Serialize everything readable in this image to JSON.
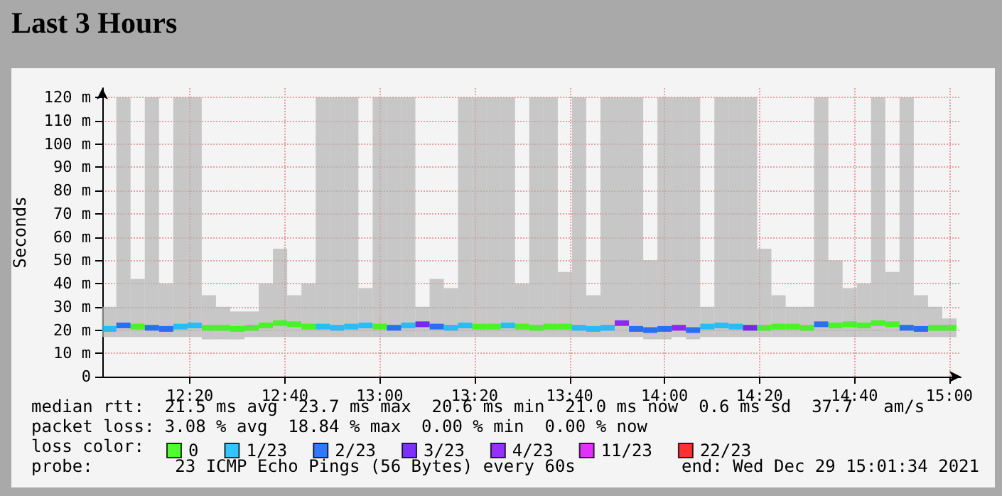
{
  "chart_data": {
    "type": "scatter",
    "title": "Last 3 Hours",
    "ylabel": "Seconds",
    "legend_title": "loss color:",
    "annotations": [
      "median rtt:  21.5 ms avg  23.7 ms max  20.6 ms min  21.0 ms now  0.6 ms sd  37.7   am/s",
      "packet loss: 3.08 % avg  18.84 % max  0.00 % min  0.00 % now",
      "probe:        23 ICMP Echo Pings (56 Bytes) every 60s",
      "end: Wed Dec 29 15:01:34 2021"
    ],
    "x": [
      12.05,
      12.1,
      12.15,
      12.2,
      12.25,
      12.3,
      12.35,
      12.4,
      12.45,
      12.5,
      12.55,
      12.6,
      12.65,
      12.7,
      12.75,
      12.8,
      12.85,
      12.9,
      12.95,
      13.0,
      13.05,
      13.1,
      13.15,
      13.2,
      13.25,
      13.3,
      13.35,
      13.4,
      13.45,
      13.5,
      13.55,
      13.6,
      13.65,
      13.7,
      13.75,
      13.8,
      13.85,
      13.9,
      13.95,
      14.0,
      14.05,
      14.1,
      14.15,
      14.2,
      14.25,
      14.3,
      14.35,
      14.4,
      14.45,
      14.5,
      14.55,
      14.6,
      14.65,
      14.7,
      14.75,
      14.8,
      14.85,
      14.9,
      14.95,
      15.0
    ],
    "series": [
      {
        "type": "bar",
        "color": "#b4b4b4",
        "values": [
          13,
          103,
          25,
          103,
          23,
          103,
          103,
          19,
          14,
          12,
          11,
          23,
          38,
          18,
          23,
          103,
          103,
          103,
          21,
          103,
          103,
          103,
          13,
          25,
          21,
          103,
          103,
          103,
          103,
          23,
          103,
          103,
          28,
          103,
          18,
          103,
          103,
          103,
          34,
          104,
          103,
          104,
          13,
          103,
          103,
          103,
          38,
          18,
          13,
          13,
          103,
          33,
          21,
          23,
          103,
          28,
          103,
          18,
          13,
          8
        ],
        "base": [
          17,
          17,
          17,
          17,
          17,
          17,
          17,
          16,
          16,
          16,
          17,
          17,
          17,
          17,
          17,
          17,
          17,
          17,
          17,
          17,
          17,
          17,
          17,
          17,
          17,
          17,
          17,
          17,
          17,
          17,
          17,
          17,
          17,
          17,
          17,
          17,
          17,
          17,
          16,
          16,
          17,
          16,
          17,
          17,
          17,
          17,
          17,
          17,
          17,
          17,
          17,
          17,
          17,
          17,
          17,
          17,
          17,
          17,
          17,
          17
        ]
      },
      {
        "name": "0",
        "color": "#26ff00",
        "marker": "square",
        "values": [
          null,
          null,
          21.5,
          null,
          null,
          null,
          null,
          21,
          21,
          20.5,
          21,
          22,
          23,
          22.5,
          21.5,
          null,
          null,
          null,
          null,
          21.5,
          null,
          null,
          null,
          null,
          null,
          null,
          21.5,
          21.5,
          null,
          21.5,
          21,
          21.5,
          21.5,
          null,
          null,
          null,
          null,
          null,
          null,
          null,
          null,
          null,
          null,
          null,
          null,
          null,
          21,
          21.5,
          21.5,
          21,
          null,
          22,
          22.5,
          22,
          23,
          22.5,
          null,
          null,
          21,
          21
        ]
      },
      {
        "name": "1/23",
        "color": "#00b8ff",
        "marker": "square",
        "values": [
          20.5,
          null,
          null,
          null,
          null,
          21.5,
          22,
          null,
          null,
          null,
          null,
          null,
          null,
          null,
          null,
          21.5,
          21,
          21.5,
          22,
          null,
          null,
          22,
          null,
          null,
          21,
          22,
          null,
          null,
          22,
          null,
          null,
          null,
          null,
          21,
          20.5,
          21,
          null,
          null,
          null,
          null,
          null,
          null,
          21.5,
          22,
          21.5,
          null,
          null,
          null,
          null,
          null,
          null,
          null,
          null,
          null,
          null,
          null,
          null,
          null,
          null,
          null
        ]
      },
      {
        "name": "2/23",
        "color": "#0059ff",
        "marker": "square",
        "values": [
          null,
          22,
          null,
          21,
          20.5,
          null,
          null,
          null,
          null,
          null,
          null,
          null,
          null,
          null,
          null,
          null,
          null,
          null,
          null,
          null,
          21,
          null,
          null,
          21.5,
          null,
          null,
          null,
          null,
          null,
          null,
          null,
          null,
          null,
          null,
          null,
          null,
          null,
          20.5,
          20,
          20.5,
          null,
          20,
          null,
          null,
          null,
          null,
          null,
          null,
          null,
          null,
          22.5,
          null,
          null,
          null,
          null,
          null,
          21,
          20.5,
          null,
          null
        ]
      },
      {
        "name": "3/23",
        "color": "#5e00ff",
        "marker": "square",
        "values": [
          null,
          null,
          null,
          null,
          null,
          null,
          null,
          null,
          null,
          null,
          null,
          null,
          null,
          null,
          null,
          null,
          null,
          null,
          null,
          null,
          null,
          null,
          22.5,
          null,
          null,
          null,
          null,
          null,
          null,
          null,
          null,
          null,
          null,
          null,
          null,
          null,
          null,
          null,
          null,
          null,
          null,
          null,
          null,
          null,
          null,
          21,
          null,
          null,
          null,
          null,
          null,
          null,
          null,
          null,
          null,
          null,
          null,
          null,
          null,
          null
        ]
      },
      {
        "name": "4/23",
        "color": "#7e00ff",
        "marker": "square",
        "values": [
          null,
          null,
          null,
          null,
          null,
          null,
          null,
          null,
          null,
          null,
          null,
          null,
          null,
          null,
          null,
          null,
          null,
          null,
          null,
          null,
          null,
          null,
          null,
          null,
          null,
          null,
          null,
          null,
          null,
          null,
          null,
          null,
          null,
          null,
          null,
          null,
          23,
          null,
          null,
          null,
          21,
          null,
          null,
          null,
          null,
          null,
          null,
          null,
          null,
          null,
          null,
          null,
          null,
          null,
          null,
          null,
          null,
          null,
          null,
          null
        ]
      },
      {
        "name": "11/23",
        "color": "#dd00ff",
        "marker": "square",
        "values": [
          null,
          null,
          null,
          null,
          null,
          null,
          null,
          null,
          null,
          null,
          null,
          null,
          null,
          null,
          null,
          null,
          null,
          null,
          null,
          null,
          null,
          null,
          null,
          null,
          null,
          null,
          null,
          null,
          null,
          null,
          null,
          null,
          null,
          null,
          null,
          null,
          null,
          null,
          null,
          null,
          null,
          null,
          null,
          null,
          null,
          null,
          null,
          null,
          null,
          null,
          null,
          null,
          null,
          null,
          null,
          null,
          null,
          null,
          null,
          null
        ]
      },
      {
        "name": "22/23",
        "color": "#ff0000",
        "marker": "square",
        "values": [
          null,
          null,
          null,
          null,
          null,
          null,
          null,
          null,
          null,
          null,
          null,
          null,
          null,
          null,
          null,
          null,
          null,
          null,
          null,
          null,
          null,
          null,
          null,
          null,
          null,
          null,
          null,
          null,
          null,
          null,
          null,
          null,
          null,
          null,
          null,
          null,
          null,
          null,
          null,
          null,
          null,
          null,
          null,
          null,
          null,
          null,
          null,
          null,
          null,
          null,
          null,
          null,
          null,
          null,
          null,
          null,
          null,
          null,
          null,
          null
        ]
      }
    ],
    "xlim": [
      12.026,
      15.04
    ],
    "xticks": [
      {
        "value": 12.3333,
        "label": "12:20"
      },
      {
        "value": 12.6667,
        "label": "12:40"
      },
      {
        "value": 13.0,
        "label": "13:00"
      },
      {
        "value": 13.3333,
        "label": "13:20"
      },
      {
        "value": 13.6667,
        "label": "13:40"
      },
      {
        "value": 14.0,
        "label": "14:00"
      },
      {
        "value": 14.3333,
        "label": "14:20"
      },
      {
        "value": 14.6667,
        "label": "14:40"
      },
      {
        "value": 15.0,
        "label": "15:00"
      }
    ],
    "ylim": [
      0,
      124
    ],
    "yticks": [
      0,
      {
        "value": 10,
        "label": "10 m"
      },
      {
        "value": 20,
        "label": "20 m"
      },
      {
        "value": 30,
        "label": "30 m"
      },
      {
        "value": 40,
        "label": "40 m"
      },
      {
        "value": 50,
        "label": "50 m"
      },
      {
        "value": 60,
        "label": "60 m"
      },
      {
        "value": 70,
        "label": "70 m"
      },
      {
        "value": 80,
        "label": "80 m"
      },
      {
        "value": 90,
        "label": "90 m"
      },
      {
        "value": 100,
        "label": "100 m"
      },
      {
        "value": 110,
        "label": "110 m"
      },
      {
        "value": 120,
        "label": "120 m"
      }
    ],
    "grid": true,
    "legend": "bottom"
  }
}
